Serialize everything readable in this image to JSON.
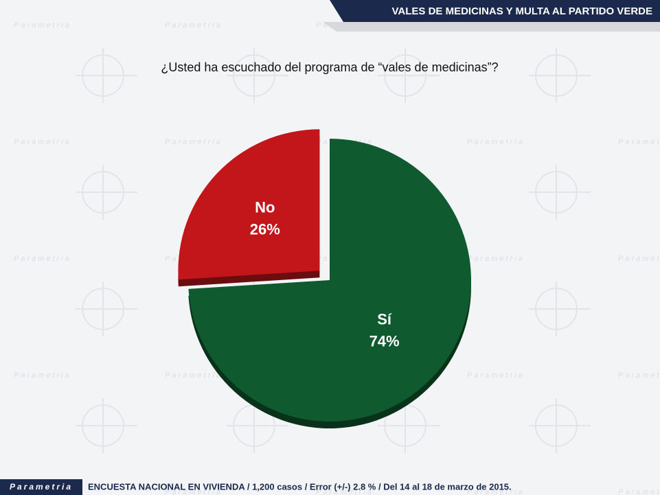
{
  "header": {
    "title": "VALES DE MEDICINAS Y MULTA AL PARTIDO VERDE"
  },
  "chart_data": {
    "type": "pie",
    "title": "¿Usted ha escuchado del programa de “vales de medicinas”?",
    "categories": [
      "Sí",
      "No"
    ],
    "values": [
      74,
      26
    ],
    "value_labels": [
      "74%",
      "26%"
    ],
    "colors": [
      "#0f5a2e",
      "#c3161b"
    ],
    "exploded": [
      false,
      true
    ]
  },
  "footer": {
    "brand": "Parametria",
    "note": "ENCUESTA NACIONAL EN VIVIENDA / 1,200 casos / Error (+/-) 2.8 % / Del 14 al 18 de marzo de 2015."
  }
}
